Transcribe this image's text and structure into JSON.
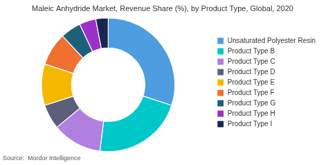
{
  "chart_data": {
    "type": "doughnut",
    "title": "Maleic Anhydride Market, Revenue Share (%), by Product Type, Global, 2020",
    "categories": [
      "Unsaturated Polyester Resin",
      "Product Type B",
      "Product Type C",
      "Product Type D",
      "Product Type E",
      "Product Type F",
      "Product Type G",
      "Product Type H",
      "Product Type I"
    ],
    "values": [
      30,
      22,
      12,
      6,
      10,
      8,
      5,
      4,
      3
    ],
    "colors": [
      "#4d9de0",
      "#00c8c8",
      "#b07fe0",
      "#5a607a",
      "#f5b800",
      "#f07030",
      "#1e607a",
      "#9b30c8",
      "#1a2550"
    ],
    "annotation": "Source:  Mordor Intelligence",
    "legend": "right"
  }
}
